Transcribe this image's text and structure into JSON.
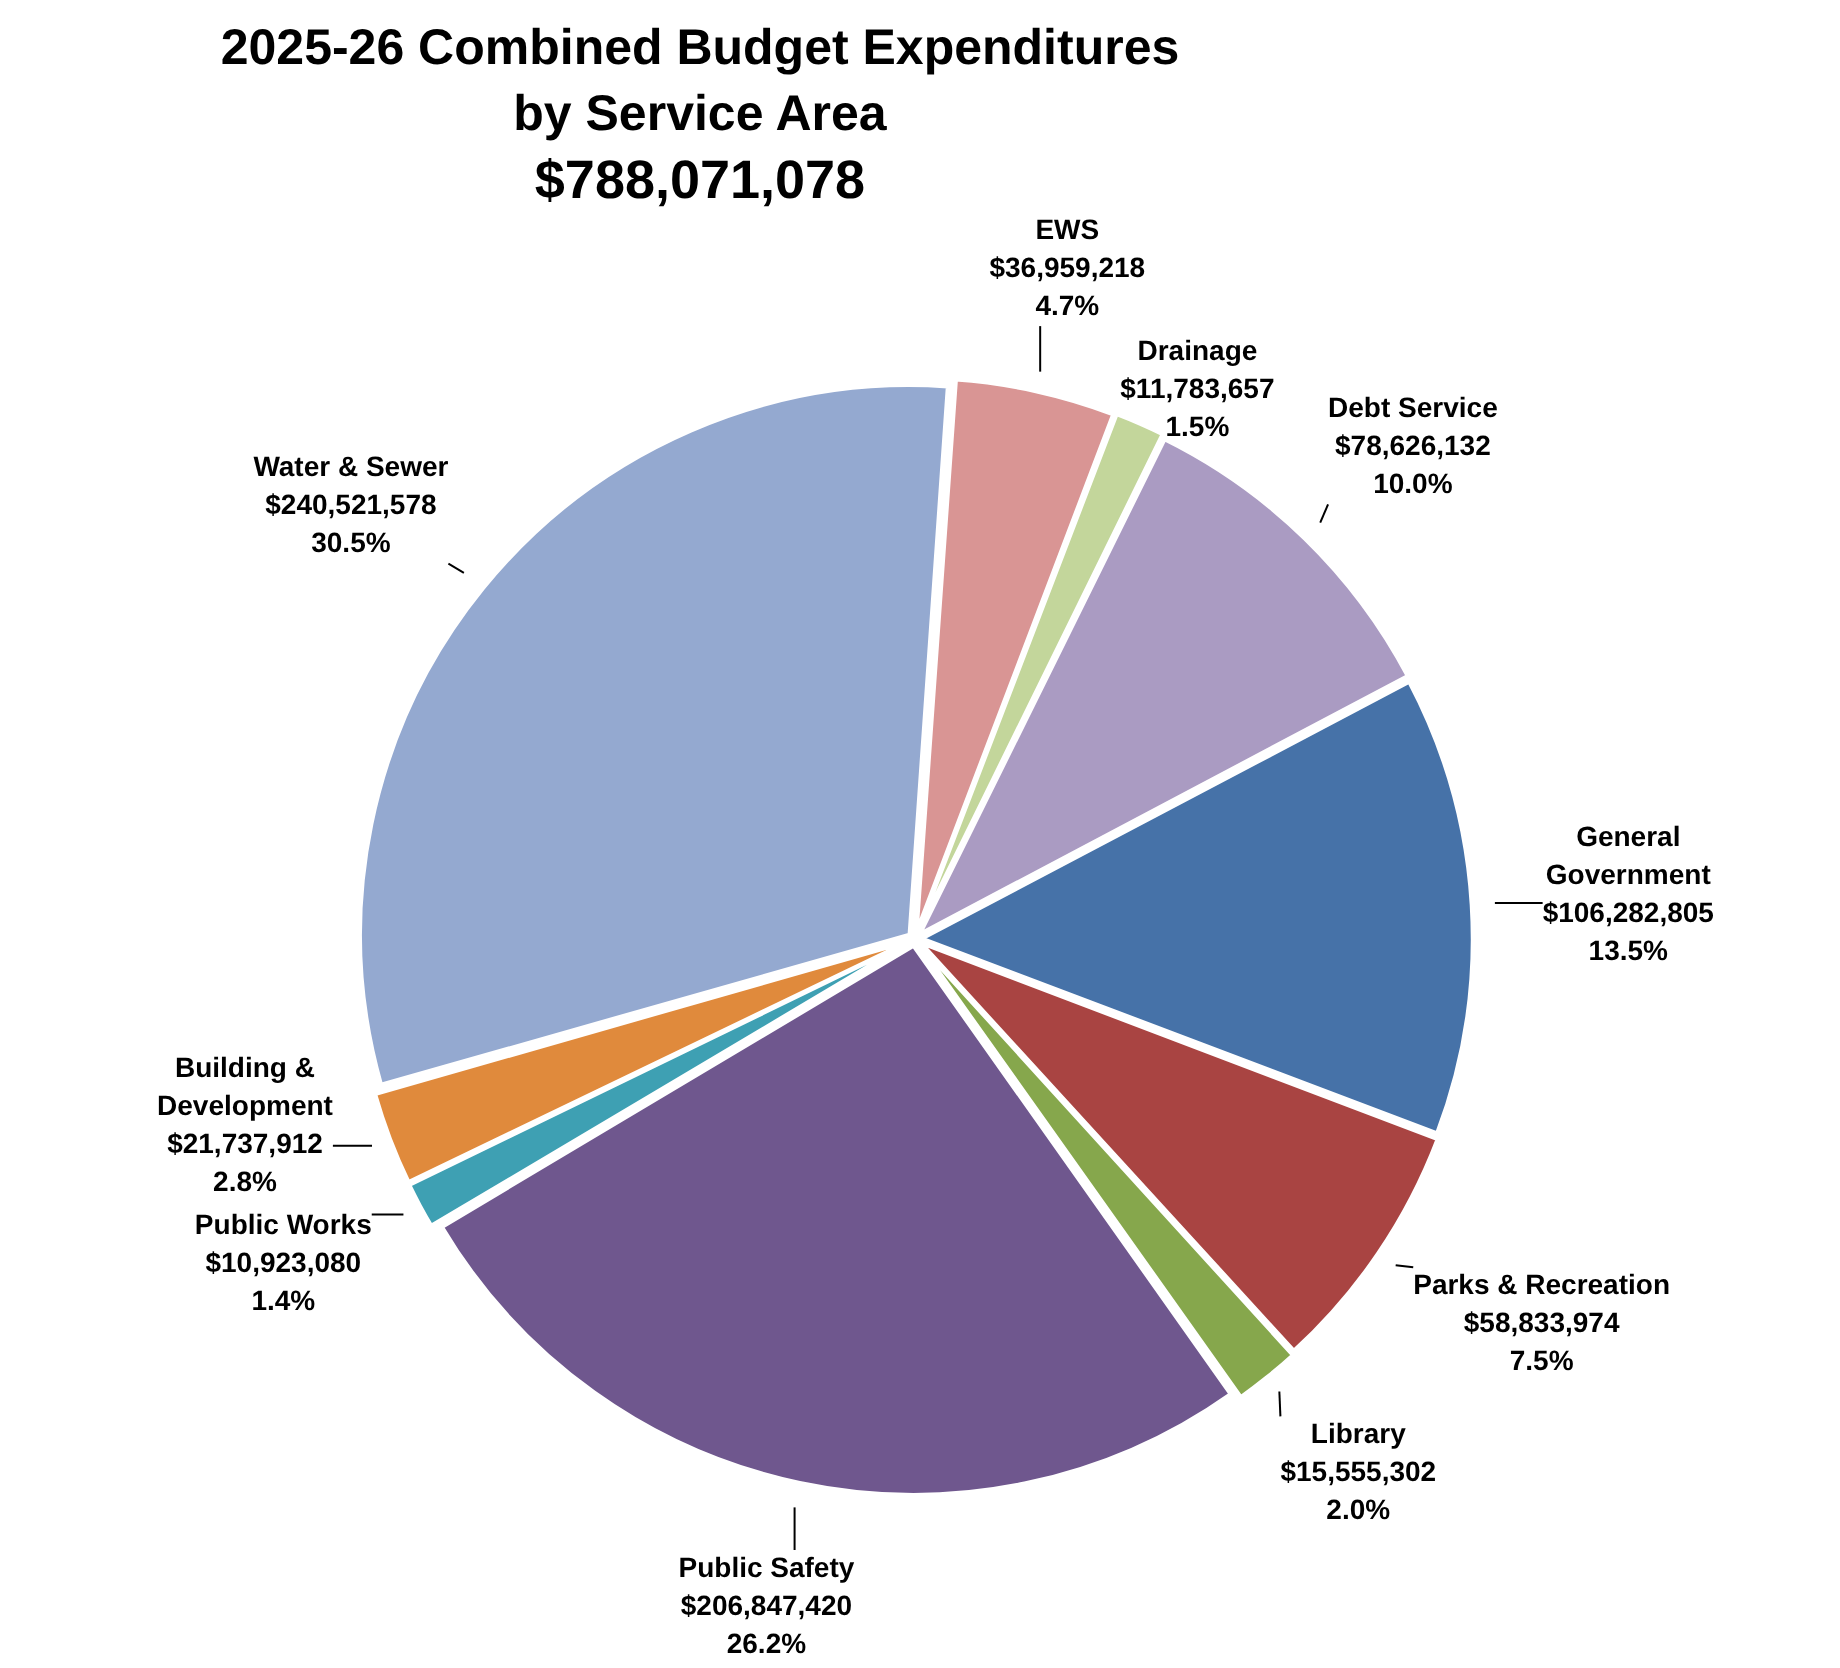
{
  "chart_data": {
    "type": "pie",
    "title": "2025-26 Combined Budget Expenditures by Service Area",
    "subtitle": "$788,071,078",
    "categories": [
      "EWS",
      "Drainage",
      "Debt Service",
      "General Government",
      "Parks & Recreation",
      "Library",
      "Public Safety",
      "Public Works",
      "Building & Development",
      "Water & Sewer"
    ],
    "values": [
      36959218,
      11783657,
      78626132,
      106282805,
      58833974,
      15555302,
      206847420,
      10923080,
      21737912,
      240521578
    ],
    "colors": [
      "#d99594",
      "#c3d69b",
      "#aa9bc2",
      "#4672a8",
      "#a94442",
      "#86a74c",
      "#6f578e",
      "#3ea0b3",
      "#e08a3c",
      "#94a9d0"
    ],
    "value_labels": [
      "$36,959,218\n4.7%",
      "$11,783,657\n1.5%",
      "$78,626,132\n10.0%",
      "$106,282,805\n13.5%",
      "$58,833,974\n7.5%",
      "$15,555,302\n2.0%",
      "$206,847,420\n26.2%",
      "$10,923,080\n1.4%",
      "$21,737,912\n2.8%",
      "$240,521,578\n30.5%"
    ],
    "legend": false
  }
}
